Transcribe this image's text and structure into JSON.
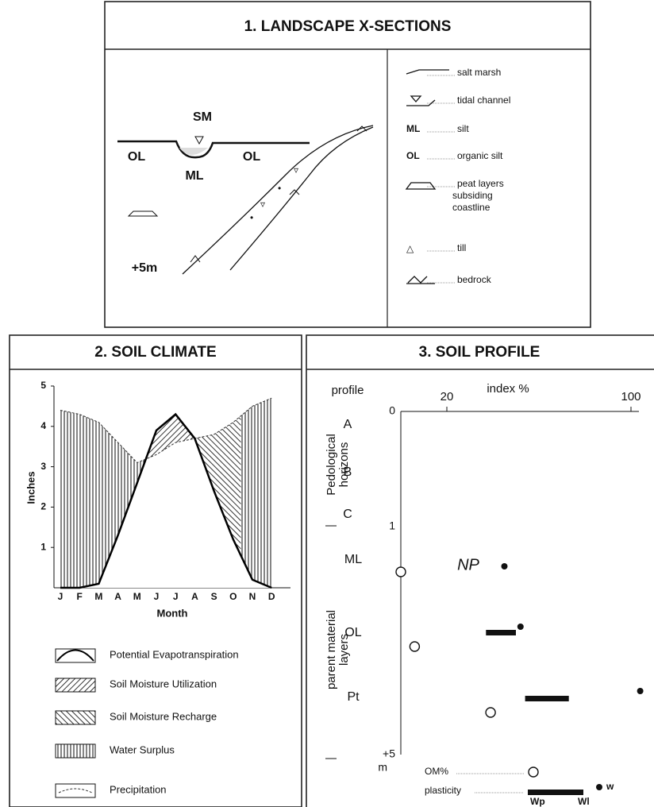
{
  "landscape": {
    "title": "1. LANDSCAPE X-SECTIONS",
    "labels": {
      "sm": "SM",
      "ol_left": "OL",
      "ml": "ML",
      "ol_right": "OL",
      "depth": "+5m"
    },
    "legend": [
      {
        "text": [
          "salt marsh"
        ]
      },
      {
        "text": [
          "tidal channel"
        ]
      },
      {
        "key": "ML",
        "text": [
          "silt"
        ]
      },
      {
        "key": "OL",
        "text": [
          "organic silt"
        ]
      },
      {
        "text": [
          "peat layers",
          "subsiding",
          "coastline"
        ]
      },
      {
        "text": [
          "till"
        ]
      },
      {
        "text": [
          "bedrock"
        ]
      }
    ]
  },
  "soil_climate": {
    "title": "2. SOIL CLIMATE",
    "y_label": "Inches",
    "x_label": "Month",
    "months": [
      "J",
      "F",
      "M",
      "A",
      "M",
      "J",
      "J",
      "A",
      "S",
      "O",
      "N",
      "D"
    ],
    "ylim": [
      0,
      5
    ],
    "yticks": [
      1,
      2,
      3,
      4,
      5
    ],
    "pet": [
      0,
      0,
      0.1,
      1.3,
      2.6,
      3.9,
      4.3,
      3.7,
      2.4,
      1.2,
      0.2,
      0
    ],
    "precipitation": [
      4.4,
      4.3,
      4.1,
      3.6,
      3.1,
      3.3,
      3.6,
      3.7,
      3.8,
      4.1,
      4.5,
      4.7
    ],
    "legend": [
      "Potential Evapotranspiration",
      "Soil Moisture Utilization",
      "Soil Moisture Recharge",
      "Water Surplus",
      "Precipitation"
    ]
  },
  "soil_profile": {
    "title": "3. SOIL PROFILE",
    "profile_label": "profile",
    "x_label": "index %",
    "xlim": [
      0,
      100
    ],
    "xticks": [
      20,
      100
    ],
    "depth_labels": [
      "0",
      "1",
      "+5",
      "m"
    ],
    "horizons": [
      "A",
      "B",
      "C"
    ],
    "horizon_group": [
      "Pedological",
      "horizons"
    ],
    "layer_group": [
      "parent material",
      "layers"
    ],
    "np_label": "NP",
    "layers": [
      {
        "name": "ML",
        "om": 0,
        "w": 45
      },
      {
        "name": "OL",
        "om": 6,
        "wp": 37,
        "wl": 50,
        "w": 52
      },
      {
        "name": "Pt",
        "om": 39,
        "wp": 54,
        "wl": 73,
        "w": 104
      }
    ],
    "key": {
      "om": "OM%",
      "plasticity": "plasticity",
      "w": "w",
      "wp": "Wp",
      "wl": "Wl"
    }
  }
}
